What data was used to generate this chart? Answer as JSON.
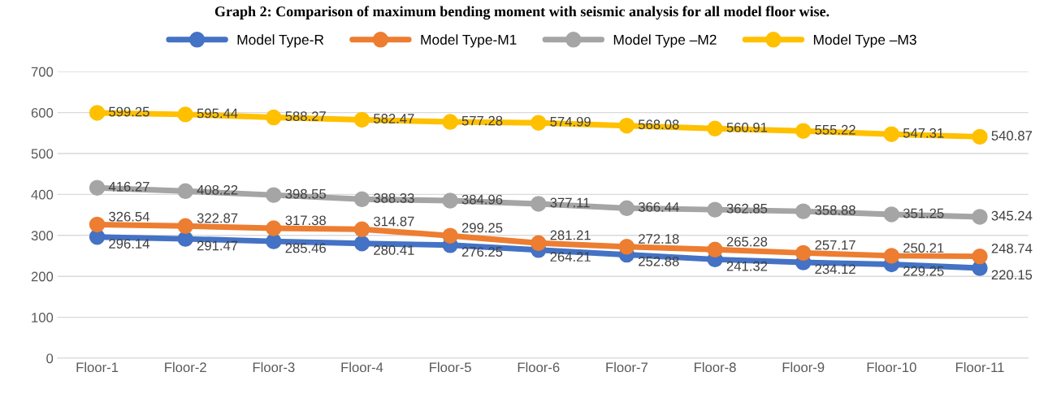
{
  "chart_data": {
    "type": "line",
    "title": "Graph 2: Comparison of maximum bending moment with seismic analysis for all model floor wise.",
    "categories": [
      "Floor-1",
      "Floor-2",
      "Floor-3",
      "Floor-4",
      "Floor-5",
      "Floor-6",
      "Floor-7",
      "Floor-8",
      "Floor-9",
      "Floor-10",
      "Floor-11"
    ],
    "series": [
      {
        "name": "Model Type-R",
        "color": "#4472c4",
        "values": [
          296.14,
          291.47,
          285.46,
          280.41,
          276.25,
          264.21,
          252.88,
          241.32,
          234.12,
          229.25,
          220.15
        ]
      },
      {
        "name": "Model Type-M1",
        "color": "#ed7d31",
        "values": [
          326.54,
          322.87,
          317.38,
          314.87,
          299.25,
          281.21,
          272.18,
          265.28,
          257.17,
          250.21,
          248.74
        ]
      },
      {
        "name": "Model Type –M2",
        "color": "#a5a5a5",
        "values": [
          416.27,
          408.22,
          398.55,
          388.33,
          384.96,
          377.11,
          366.44,
          362.85,
          358.88,
          351.25,
          345.24
        ]
      },
      {
        "name": "Model Type –M3",
        "color": "#ffc000",
        "values": [
          599.25,
          595.44,
          588.27,
          582.47,
          577.28,
          574.99,
          568.08,
          560.91,
          555.22,
          547.31,
          540.87
        ]
      }
    ],
    "ylim": [
      0,
      700
    ],
    "yticks": [
      0,
      100,
      200,
      300,
      400,
      500,
      600,
      700
    ],
    "grid": "y",
    "legend": "top",
    "marker": "circle",
    "line_style": "solid",
    "data_labels": true
  }
}
